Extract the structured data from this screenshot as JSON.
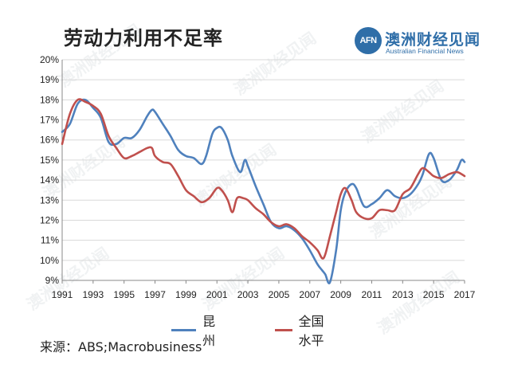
{
  "header": {
    "title": "劳动力利用不足率",
    "brand_logo": "AFN",
    "brand_name": "澳洲财经见闻",
    "brand_subtitle": "Australian Financial News"
  },
  "watermark": "澳洲财经见闻",
  "source": "来源：ABS;Macrobusiness",
  "chart_data": {
    "type": "line",
    "title": "劳动力利用不足率",
    "xlim": [
      1991,
      2017
    ],
    "ylim": [
      9,
      20
    ],
    "x_ticks": [
      "1991",
      "1993",
      "1995",
      "1997",
      "1999",
      "2001",
      "2003",
      "2005",
      "2007",
      "2009",
      "2011",
      "2013",
      "2015",
      "2017"
    ],
    "y_ticks": [
      "9%",
      "10%",
      "11%",
      "12%",
      "13%",
      "14%",
      "15%",
      "16%",
      "17%",
      "18%",
      "19%",
      "20%"
    ],
    "grid": "horizontal",
    "legend_position": "bottom",
    "series": [
      {
        "name": "昆州",
        "color": "#4f81bd",
        "x": [
          1991.0,
          1991.5,
          1992.0,
          1992.5,
          1993.0,
          1993.5,
          1994.0,
          1994.5,
          1995.0,
          1995.5,
          1996.0,
          1996.5,
          1996.8,
          1997.0,
          1997.5,
          1998.0,
          1998.5,
          1999.0,
          1999.5,
          2000.0,
          2000.3,
          2000.7,
          2001.0,
          2001.3,
          2001.7,
          2002.0,
          2002.5,
          2002.8,
          2003.0,
          2003.5,
          2004.0,
          2004.5,
          2005.0,
          2005.5,
          2006.0,
          2006.5,
          2007.0,
          2007.5,
          2007.8,
          2008.0,
          2008.3,
          2008.7,
          2009.0,
          2009.3,
          2009.7,
          2010.0,
          2010.5,
          2011.0,
          2011.5,
          2012.0,
          2012.5,
          2013.0,
          2013.5,
          2014.0,
          2014.3,
          2014.7,
          2015.0,
          2015.5,
          2016.0,
          2016.5,
          2016.8,
          2017.0
        ],
        "values": [
          16.4,
          16.8,
          17.8,
          18.0,
          17.6,
          17.1,
          15.9,
          15.8,
          16.1,
          16.1,
          16.5,
          17.2,
          17.5,
          17.4,
          16.8,
          16.2,
          15.5,
          15.2,
          15.1,
          14.8,
          15.2,
          16.3,
          16.6,
          16.6,
          16.0,
          15.2,
          14.4,
          15.0,
          14.7,
          13.7,
          12.8,
          11.9,
          11.6,
          11.7,
          11.5,
          11.1,
          10.5,
          9.8,
          9.5,
          9.3,
          8.9,
          10.5,
          12.5,
          13.4,
          13.8,
          13.6,
          12.7,
          12.8,
          13.1,
          13.5,
          13.2,
          13.1,
          13.3,
          13.8,
          14.3,
          15.3,
          15.1,
          14.0,
          14.0,
          14.5,
          15.0,
          14.9
        ]
      },
      {
        "name": "全国水平",
        "color": "#c0504d",
        "x": [
          1991.0,
          1991.5,
          1992.0,
          1992.5,
          1993.0,
          1993.5,
          1994.0,
          1994.5,
          1995.0,
          1995.5,
          1996.0,
          1996.5,
          1996.8,
          1997.0,
          1997.5,
          1998.0,
          1998.5,
          1999.0,
          1999.5,
          2000.0,
          2000.5,
          2001.0,
          2001.3,
          2001.7,
          2002.0,
          2002.3,
          2002.7,
          2003.0,
          2003.5,
          2004.0,
          2004.5,
          2005.0,
          2005.5,
          2006.0,
          2006.5,
          2007.0,
          2007.5,
          2007.8,
          2008.0,
          2008.3,
          2008.7,
          2009.0,
          2009.3,
          2009.7,
          2010.0,
          2010.5,
          2011.0,
          2011.5,
          2012.0,
          2012.5,
          2013.0,
          2013.5,
          2014.0,
          2014.3,
          2014.7,
          2015.0,
          2015.5,
          2016.0,
          2016.5,
          2016.8,
          2017.0
        ],
        "values": [
          15.8,
          17.3,
          18.0,
          17.9,
          17.7,
          17.3,
          16.2,
          15.6,
          15.1,
          15.2,
          15.4,
          15.6,
          15.6,
          15.2,
          14.9,
          14.8,
          14.2,
          13.5,
          13.2,
          12.9,
          13.1,
          13.6,
          13.5,
          13.0,
          12.4,
          13.1,
          13.1,
          13.0,
          12.6,
          12.3,
          11.9,
          11.7,
          11.8,
          11.6,
          11.2,
          10.9,
          10.5,
          10.1,
          10.3,
          11.2,
          12.4,
          13.3,
          13.6,
          13.0,
          12.4,
          12.1,
          12.1,
          12.5,
          12.5,
          12.5,
          13.3,
          13.6,
          14.3,
          14.6,
          14.4,
          14.2,
          14.1,
          14.3,
          14.4,
          14.3,
          14.2
        ]
      }
    ]
  }
}
